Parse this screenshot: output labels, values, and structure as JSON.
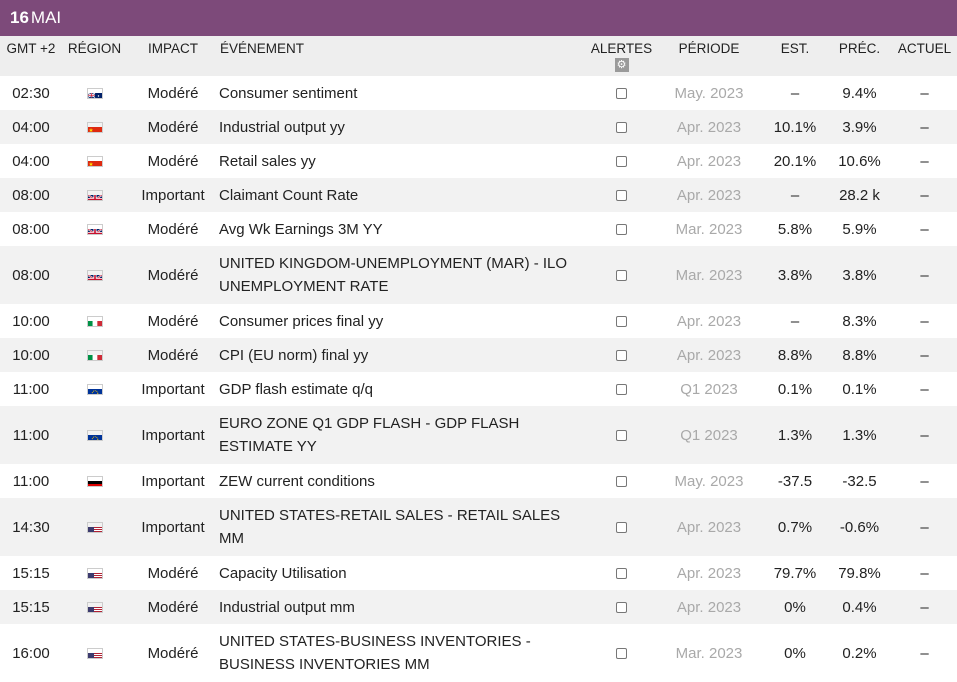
{
  "date": {
    "day": "16",
    "month": "MAI"
  },
  "columns": {
    "time": "GMT +2",
    "region": "RÉGION",
    "impact": "IMPACT",
    "event": "ÉVÉNEMENT",
    "alerts": "ALERTES",
    "period": "PÉRIODE",
    "est": "EST.",
    "prev": "PRÉC.",
    "actual": "ACTUEL"
  },
  "alerts_settings_icon": "gear-icon",
  "rows": [
    {
      "time": "02:30",
      "flag": "australia",
      "impact": "Modéré",
      "event": "Consumer sentiment",
      "period": "May. 2023",
      "est": "–",
      "prev": "9.4%",
      "actual": "–"
    },
    {
      "time": "04:00",
      "flag": "china",
      "impact": "Modéré",
      "event": "Industrial output yy",
      "period": "Apr. 2023",
      "est": "10.1%",
      "prev": "3.9%",
      "actual": "–"
    },
    {
      "time": "04:00",
      "flag": "china",
      "impact": "Modéré",
      "event": "Retail sales yy",
      "period": "Apr. 2023",
      "est": "20.1%",
      "prev": "10.6%",
      "actual": "–"
    },
    {
      "time": "08:00",
      "flag": "united-kingdom",
      "impact": "Important",
      "event": "Claimant Count Rate",
      "period": "Apr. 2023",
      "est": "–",
      "prev": "28.2 k",
      "actual": "–"
    },
    {
      "time": "08:00",
      "flag": "united-kingdom",
      "impact": "Modéré",
      "event": "Avg Wk Earnings 3M YY",
      "period": "Mar. 2023",
      "est": "5.8%",
      "prev": "5.9%",
      "actual": "–"
    },
    {
      "time": "08:00",
      "flag": "united-kingdom",
      "impact": "Modéré",
      "event": "UNITED KINGDOM-UNEMPLOYMENT (MAR) - ILO UNEMPLOYMENT RATE",
      "period": "Mar. 2023",
      "est": "3.8%",
      "prev": "3.8%",
      "actual": "–",
      "tall": true
    },
    {
      "time": "10:00",
      "flag": "italy",
      "impact": "Modéré",
      "event": "Consumer prices final yy",
      "period": "Apr. 2023",
      "est": "–",
      "prev": "8.3%",
      "actual": "–"
    },
    {
      "time": "10:00",
      "flag": "italy",
      "impact": "Modéré",
      "event": "CPI (EU norm) final yy",
      "period": "Apr. 2023",
      "est": "8.8%",
      "prev": "8.8%",
      "actual": "–"
    },
    {
      "time": "11:00",
      "flag": "euro-zone",
      "impact": "Important",
      "event": "GDP flash estimate q/q",
      "period": "Q1 2023",
      "est": "0.1%",
      "prev": "0.1%",
      "actual": "–"
    },
    {
      "time": "11:00",
      "flag": "euro-zone",
      "impact": "Important",
      "event": "EURO ZONE Q1 GDP FLASH - GDP FLASH ESTIMATE YY",
      "period": "Q1 2023",
      "est": "1.3%",
      "prev": "1.3%",
      "actual": "–",
      "tall": true
    },
    {
      "time": "11:00",
      "flag": "germany",
      "impact": "Important",
      "event": "ZEW current conditions",
      "period": "May. 2023",
      "est": "-37.5",
      "prev": "-32.5",
      "actual": "–"
    },
    {
      "time": "14:30",
      "flag": "united-states",
      "impact": "Important",
      "event": "UNITED STATES-RETAIL SALES - RETAIL SALES MM",
      "period": "Apr. 2023",
      "est": "0.7%",
      "prev": "-0.6%",
      "actual": "–",
      "tall": true
    },
    {
      "time": "15:15",
      "flag": "united-states",
      "impact": "Modéré",
      "event": "Capacity Utilisation",
      "period": "Apr. 2023",
      "est": "79.7%",
      "prev": "79.8%",
      "actual": "–"
    },
    {
      "time": "15:15",
      "flag": "united-states",
      "impact": "Modéré",
      "event": "Industrial output mm",
      "period": "Apr. 2023",
      "est": "0%",
      "prev": "0.4%",
      "actual": "–"
    },
    {
      "time": "16:00",
      "flag": "united-states",
      "impact": "Modéré",
      "event": "UNITED STATES-BUSINESS INVENTORIES - BUSINESS INVENTORIES MM",
      "period": "Mar. 2023",
      "est": "0%",
      "prev": "0.2%",
      "actual": "–",
      "tall": true
    }
  ],
  "colors": {
    "header_bar": "#7d4a7a",
    "period_text": "#a9a9a9",
    "column_header_bg": "#eeeeee",
    "stripe": "#f2f2f2"
  }
}
